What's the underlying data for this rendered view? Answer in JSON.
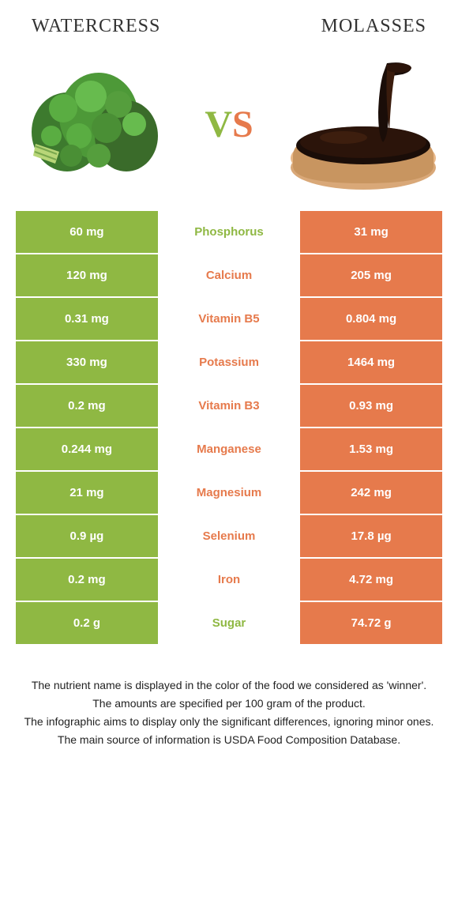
{
  "foods": {
    "left": {
      "name": "Watercress",
      "color": "#8fb843"
    },
    "right": {
      "name": "molasses",
      "color": "#e67a4c"
    }
  },
  "vs": {
    "v": "V",
    "s": "S"
  },
  "colors": {
    "leftBg": "#8fb843",
    "rightBg": "#e67a4c",
    "leftText": "#8fb843",
    "rightText": "#e67a4c"
  },
  "rows": [
    {
      "left": "60 mg",
      "nutrient": "Phosphorus",
      "right": "31 mg",
      "winner": "left"
    },
    {
      "left": "120 mg",
      "nutrient": "Calcium",
      "right": "205 mg",
      "winner": "right"
    },
    {
      "left": "0.31 mg",
      "nutrient": "Vitamin B5",
      "right": "0.804 mg",
      "winner": "right"
    },
    {
      "left": "330 mg",
      "nutrient": "Potassium",
      "right": "1464 mg",
      "winner": "right"
    },
    {
      "left": "0.2 mg",
      "nutrient": "Vitamin B3",
      "right": "0.93 mg",
      "winner": "right"
    },
    {
      "left": "0.244 mg",
      "nutrient": "Manganese",
      "right": "1.53 mg",
      "winner": "right"
    },
    {
      "left": "21 mg",
      "nutrient": "Magnesium",
      "right": "242 mg",
      "winner": "right"
    },
    {
      "left": "0.9 µg",
      "nutrient": "Selenium",
      "right": "17.8 µg",
      "winner": "right"
    },
    {
      "left": "0.2 mg",
      "nutrient": "Iron",
      "right": "4.72 mg",
      "winner": "right"
    },
    {
      "left": "0.2 g",
      "nutrient": "Sugar",
      "right": "74.72 g",
      "winner": "left"
    }
  ],
  "footer": [
    "The nutrient name is displayed in the color of the food we considered as 'winner'.",
    "The amounts are specified per 100 gram of the product.",
    "The infographic aims to display only the significant differences, ignoring minor ones.",
    "The main source of information is USDA Food Composition Database."
  ]
}
